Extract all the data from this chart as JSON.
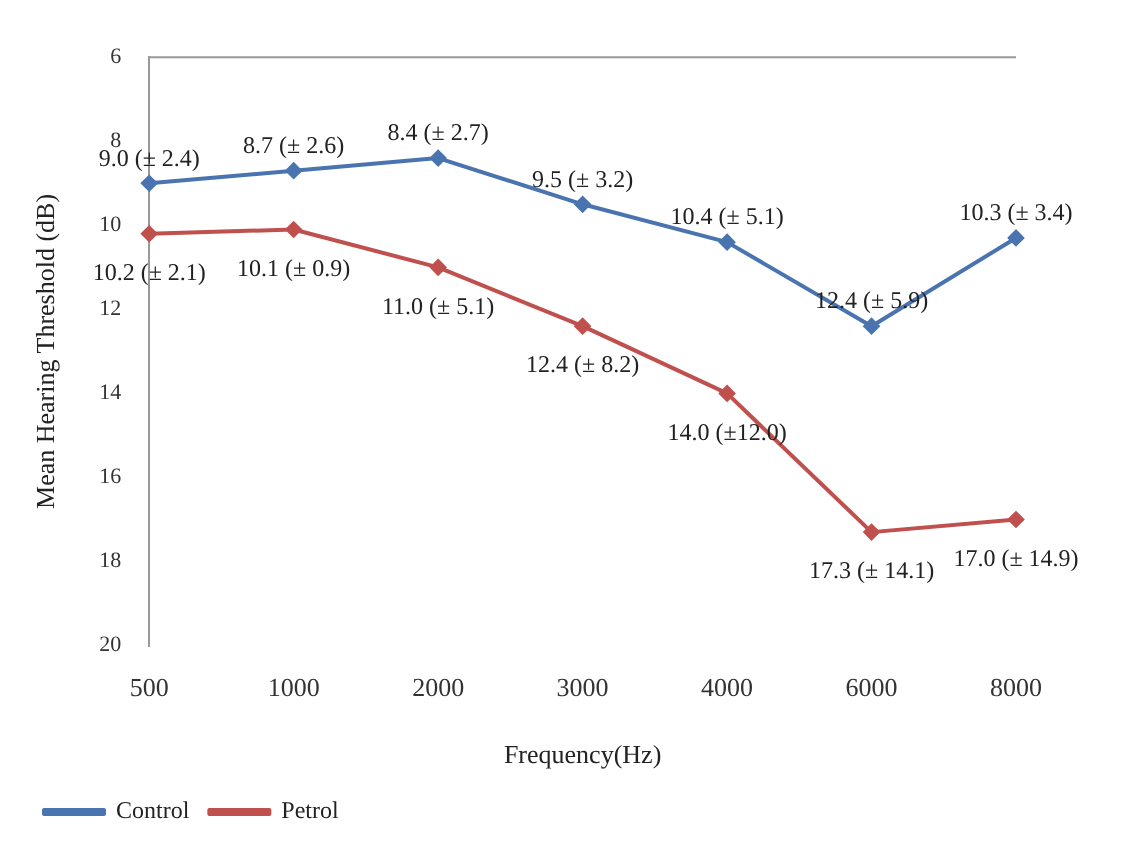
{
  "chart_data": {
    "type": "line",
    "xlabel": "Frequency(Hz)",
    "ylabel": "Mean Hearing Threshold (dB)",
    "categories": [
      "500",
      "1000",
      "2000",
      "3000",
      "4000",
      "6000",
      "8000"
    ],
    "series": [
      {
        "name": "Control",
        "color": "#4a74b0",
        "values": [
          9.0,
          8.7,
          8.4,
          9.5,
          10.4,
          12.4,
          10.3
        ],
        "value_labels": [
          "9.0 (± 2.4)",
          "8.7 (± 2.6)",
          "8.4 (± 2.7)",
          "9.5 (± 3.2)",
          "10.4 (± 5.1)",
          "12.4 (± 5.9)",
          "10.3 (± 3.4)"
        ]
      },
      {
        "name": "Petrol",
        "color": "#c0504d",
        "values": [
          10.2,
          10.1,
          11.0,
          12.4,
          14.0,
          17.3,
          17.0
        ],
        "value_labels": [
          "10.2 (± 2.1)",
          "10.1 (± 0.9)",
          "11.0 (± 5.1)",
          "12.4 (± 8.2)",
          "14.0 (±12.0)",
          "17.3 (± 14.1)",
          "17.0 (± 14.9)"
        ]
      }
    ],
    "ylim": [
      20,
      6
    ],
    "yticks": [
      6,
      8,
      10,
      12,
      14,
      16,
      18,
      20
    ],
    "grid": false,
    "legend": "bottom left",
    "marker": "diamond",
    "line_style": "solid"
  }
}
